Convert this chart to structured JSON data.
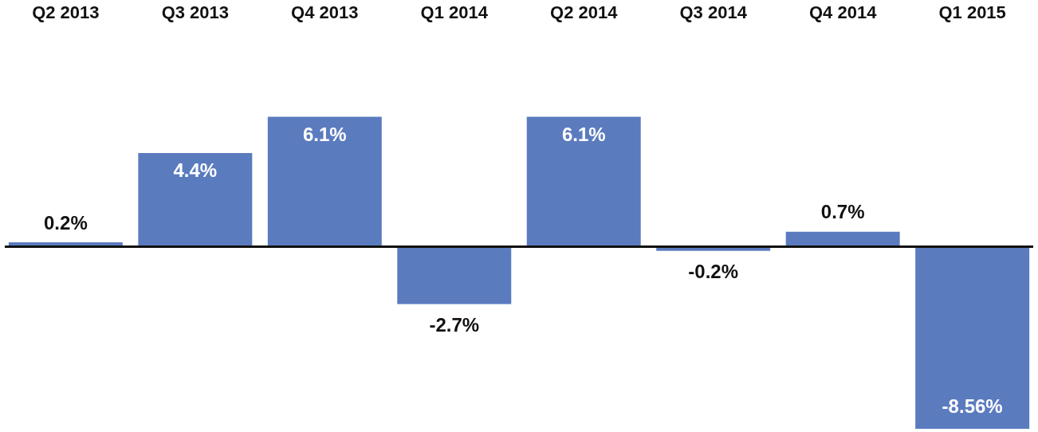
{
  "chart_data": {
    "type": "bar",
    "categories": [
      "Q2 2013",
      "Q3 2013",
      "Q4 2013",
      "Q1 2014",
      "Q2 2014",
      "Q3 2014",
      "Q4 2014",
      "Q1 2015"
    ],
    "values": [
      0.2,
      4.4,
      6.1,
      -2.7,
      6.1,
      -0.2,
      0.7,
      -8.56
    ],
    "value_labels": [
      "0.2%",
      "4.4%",
      "6.1%",
      "-2.7%",
      "6.1%",
      "-0.2%",
      "0.7%",
      "-8.56%"
    ],
    "color": "#5b7bbf"
  }
}
